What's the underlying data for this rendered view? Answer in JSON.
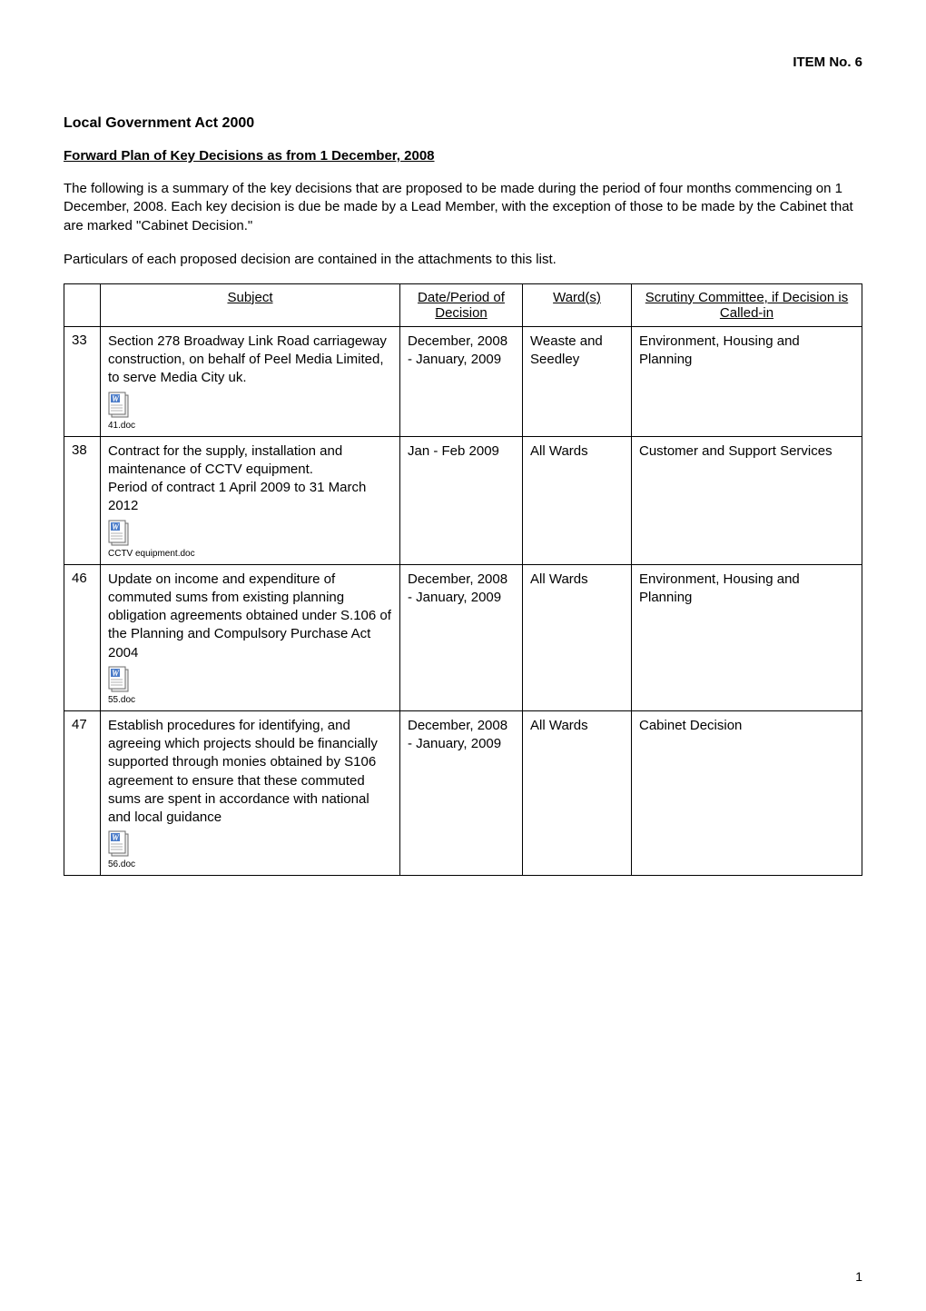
{
  "header": {
    "item_no": "ITEM No. 6"
  },
  "title": "Local Government Act 2000",
  "subtitle": "Forward Plan of Key Decisions as from 1 December, 2008",
  "intro_para": "The following is a summary of the key decisions that are proposed to be made during the period of four months commencing on 1 December, 2008. Each key decision is due be made by a Lead Member, with the exception of those to be made by the Cabinet that are marked \"Cabinet Decision.\"",
  "particulars": "Particulars of each proposed decision are contained in the attachments to this list.",
  "table": {
    "headers": {
      "subject": "Subject",
      "date": "Date/Period of Decision",
      "ward": "Ward(s)",
      "scrutiny": "Scrutiny Committee, if Decision is Called-in"
    },
    "rows": [
      {
        "num": "33",
        "subject": "Section 278 Broadway Link Road carriageway construction, on behalf of Peel Media Limited, to serve Media City uk.",
        "doc": "41.doc",
        "date": "December, 2008 - January, 2009",
        "ward": "Weaste and Seedley",
        "scrutiny": "Environment, Housing and Planning"
      },
      {
        "num": "38",
        "subject": "Contract for the supply, installation and maintenance of CCTV equipment.\nPeriod of contract 1 April 2009 to 31 March 2012",
        "doc": "CCTV equipment.doc",
        "date": "Jan - Feb 2009",
        "ward": "All Wards",
        "scrutiny": "Customer and Support Services"
      },
      {
        "num": "46",
        "subject": "Update on income and expenditure of commuted sums from existing planning obligation agreements obtained under S.106 of the Planning and Compulsory Purchase Act 2004",
        "doc": "55.doc",
        "date": "December, 2008 - January, 2009",
        "ward": "All Wards",
        "scrutiny": "Environment, Housing and Planning"
      },
      {
        "num": "47",
        "subject": "Establish procedures for identifying, and agreeing which projects should be financially supported through monies obtained by S106 agreement to ensure that these commuted sums are spent in accordance with national and local guidance",
        "doc": "56.doc",
        "date": "December, 2008 - January, 2009",
        "ward": "All Wards",
        "scrutiny": "Cabinet Decision"
      }
    ]
  },
  "page_number": "1",
  "colors": {
    "text": "#000000",
    "background": "#ffffff",
    "border": "#000000",
    "icon_blue": "#4a7bc8",
    "icon_outline": "#6b6b6b",
    "icon_page": "#f0f0f0"
  }
}
